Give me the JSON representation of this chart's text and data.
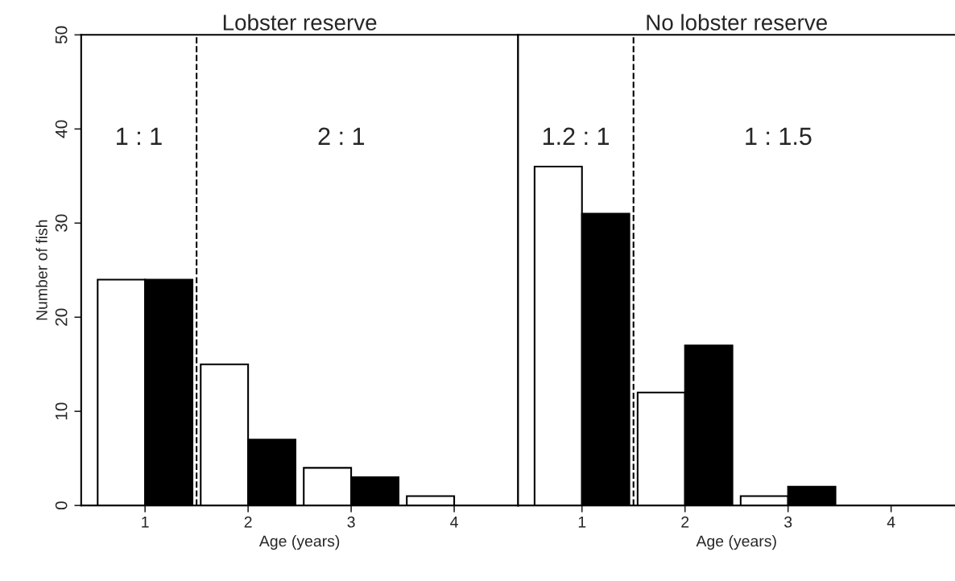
{
  "chart_data": [
    {
      "type": "bar",
      "title": "Lobster reserve",
      "xlabel": "Age (years)",
      "ylabel": "Number of fish",
      "x": [
        1,
        2,
        3,
        4
      ],
      "xlim": [
        0.38,
        4.62
      ],
      "xticks": [
        1,
        2,
        3,
        4
      ],
      "ylim": [
        0,
        50
      ],
      "yticks": [
        0,
        10,
        20,
        30,
        40,
        50
      ],
      "series": [
        {
          "color": "#ffffff",
          "values": [
            24,
            15,
            4,
            1
          ]
        },
        {
          "color": "#000000",
          "values": [
            24,
            7,
            3,
            0
          ]
        }
      ],
      "ref_lines": [
        {
          "axis": "x",
          "value": 1.5,
          "color": "#000000",
          "line_style": "dashed"
        }
      ],
      "annotations": [
        "1 : 1",
        "2 : 1"
      ],
      "grid": false,
      "legend": false
    },
    {
      "type": "bar",
      "title": "No lobster reserve",
      "xlabel": "Age (years)",
      "x": [
        1,
        2,
        3,
        4
      ],
      "xlim": [
        0.38,
        4.62
      ],
      "xticks": [
        1,
        2,
        3,
        4
      ],
      "ylim": [
        0,
        50
      ],
      "yticks": [
        0,
        10,
        20,
        30,
        40,
        50
      ],
      "series": [
        {
          "color": "#ffffff",
          "values": [
            36,
            12,
            1,
            0
          ]
        },
        {
          "color": "#000000",
          "values": [
            31,
            17,
            2,
            0
          ]
        }
      ],
      "ref_lines": [
        {
          "axis": "x",
          "value": 1.5,
          "color": "#000000",
          "line_style": "dashed"
        }
      ],
      "annotations": [
        "1.2 : 1",
        "1 : 1.5"
      ],
      "tick_labels": "x",
      "grid": false,
      "legend": false
    }
  ]
}
